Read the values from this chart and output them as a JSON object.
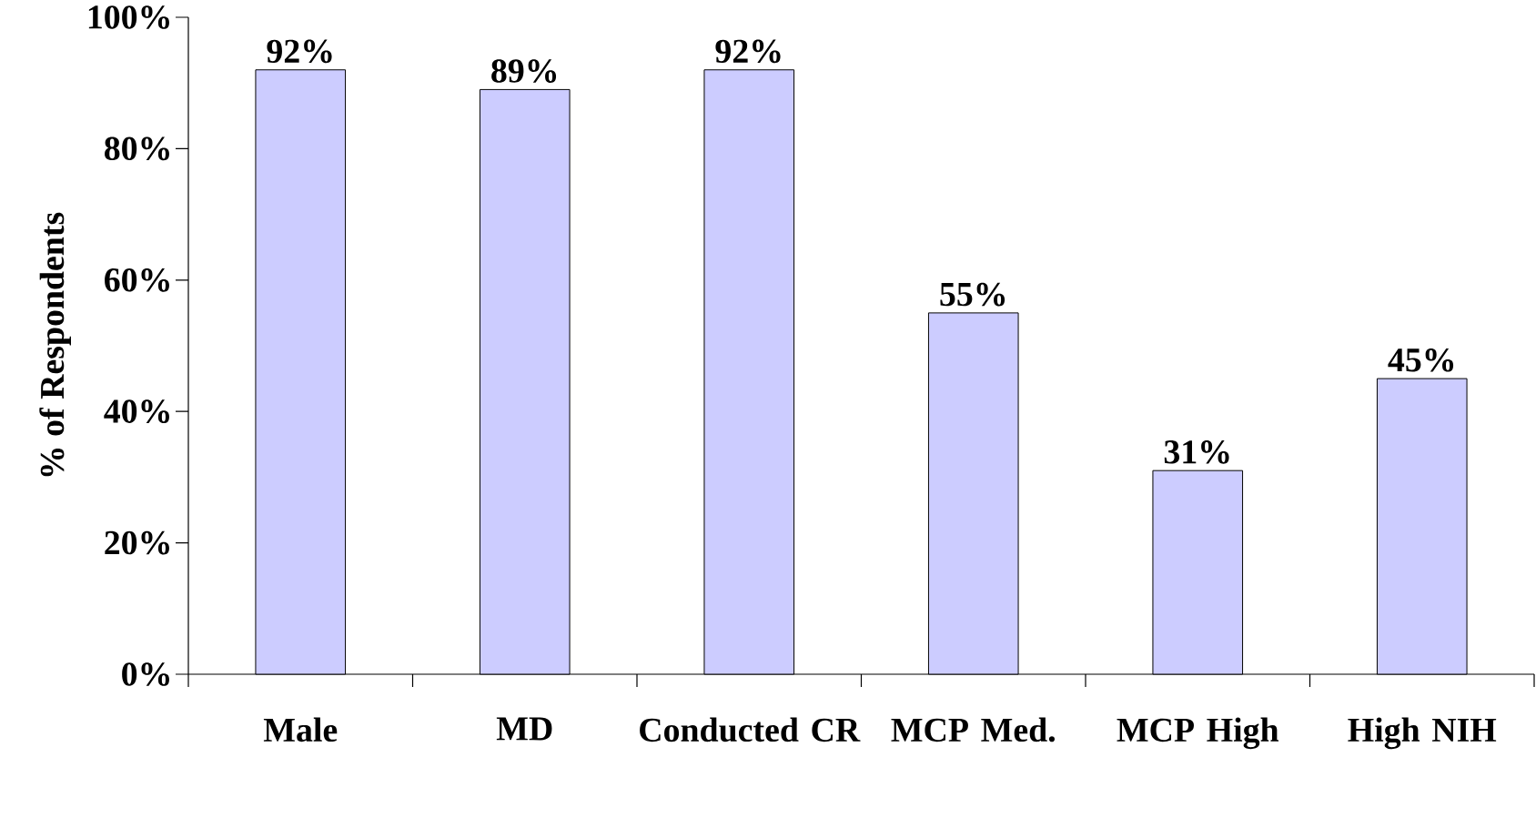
{
  "chart_data": {
    "type": "bar",
    "ylabel": "% of Respondents",
    "categories": [
      "Male",
      "MD",
      "Conducted CR",
      "MCP Med.",
      "MCP High",
      "High NIH"
    ],
    "values": [
      92,
      89,
      92,
      55,
      31,
      45
    ],
    "value_labels": [
      "92%",
      "89%",
      "92%",
      "55%",
      "31%",
      "45%"
    ],
    "color": "#ccccff",
    "ylim": [
      0,
      100
    ],
    "yticks": [
      {
        "value": 0,
        "label": "0%"
      },
      {
        "value": 20,
        "label": "20%"
      },
      {
        "value": 40,
        "label": "40%"
      },
      {
        "value": 60,
        "label": "60%"
      },
      {
        "value": 80,
        "label": "80%"
      },
      {
        "value": 100,
        "label": "100%"
      }
    ],
    "grid": false
  }
}
